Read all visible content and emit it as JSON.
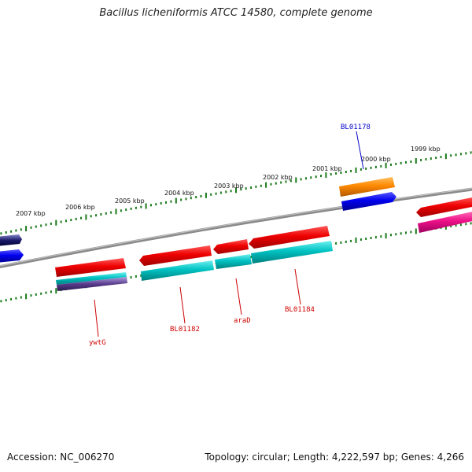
{
  "title": "Bacillus licheniformis ATCC 14580, complete genome",
  "footer": {
    "accession": "Accession: NC_006270",
    "summary": "Topology: circular; Length: 4,222,597 bp; Genes: 4,266"
  },
  "scale_labels": [
    "2007 kbp",
    "2006 kbp",
    "2005 kbp",
    "2004 kbp",
    "2003 kbp",
    "2002 kbp",
    "2001 kbp",
    "2000 kbp",
    "1999 kbp"
  ],
  "gene_labels": [
    {
      "text": "BL01178",
      "color": "#0000cc"
    },
    {
      "text": "ywtG",
      "color": "#cc0000"
    },
    {
      "text": "BL01182",
      "color": "#cc0000"
    },
    {
      "text": "araD",
      "color": "#cc0000"
    },
    {
      "text": "BL01184",
      "color": "#cc0000"
    }
  ],
  "colors": {
    "backbone": "#808080",
    "ticks": "#1a7a1a",
    "red_feature": "#ee0000",
    "cyan_feature": "#00bcbc",
    "blue_feature": "#0000ee",
    "orange_feature": "#ff8800",
    "magenta_feature": "#ee1188",
    "purple_feature": "#5a3c8c"
  }
}
